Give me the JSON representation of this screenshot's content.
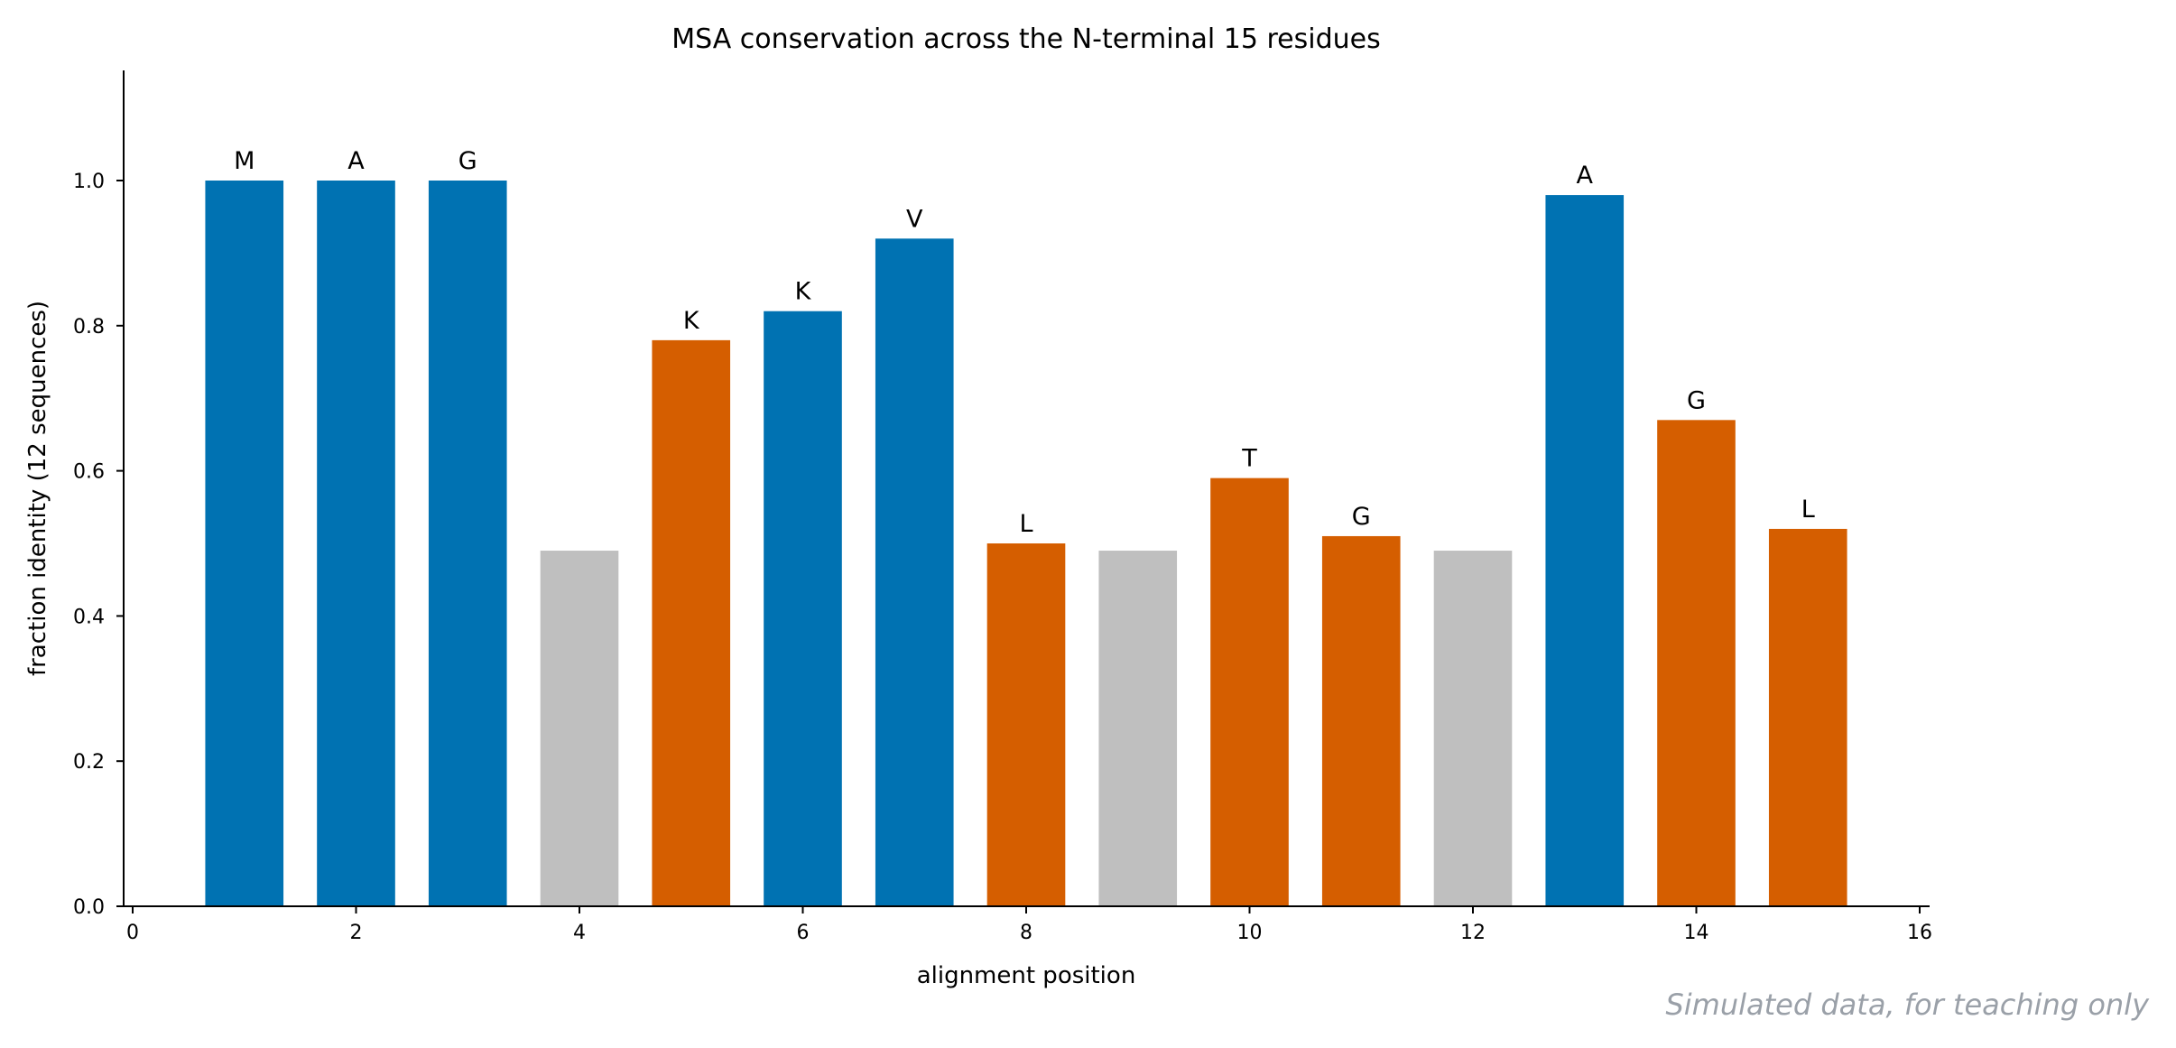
{
  "chart_data": {
    "type": "bar",
    "title": "MSA conservation across the N-terminal 15 residues",
    "xlabel": "alignment position",
    "ylabel": "fraction identity (12 sequences)",
    "xlim": [
      0,
      16
    ],
    "ylim": [
      0,
      1.15
    ],
    "xticks": [
      "0",
      "2",
      "4",
      "6",
      "8",
      "10",
      "12",
      "14",
      "16"
    ],
    "yticks": [
      "0.0",
      "0.2",
      "0.4",
      "0.6",
      "0.8",
      "1.0"
    ],
    "grid": false,
    "colors": {
      "blue": "#0072B2",
      "orange": "#D55E00",
      "gray": "#BFBFBF"
    },
    "bars": [
      {
        "x": 1,
        "value": 1.0,
        "label": "M",
        "color": "blue"
      },
      {
        "x": 2,
        "value": 1.0,
        "label": "A",
        "color": "blue"
      },
      {
        "x": 3,
        "value": 1.0,
        "label": "G",
        "color": "blue"
      },
      {
        "x": 4,
        "value": 0.49,
        "label": "",
        "color": "gray"
      },
      {
        "x": 5,
        "value": 0.78,
        "label": "K",
        "color": "orange"
      },
      {
        "x": 6,
        "value": 0.82,
        "label": "K",
        "color": "blue"
      },
      {
        "x": 7,
        "value": 0.92,
        "label": "V",
        "color": "blue"
      },
      {
        "x": 8,
        "value": 0.5,
        "label": "L",
        "color": "orange"
      },
      {
        "x": 9,
        "value": 0.49,
        "label": "",
        "color": "gray"
      },
      {
        "x": 10,
        "value": 0.59,
        "label": "T",
        "color": "orange"
      },
      {
        "x": 11,
        "value": 0.51,
        "label": "G",
        "color": "orange"
      },
      {
        "x": 12,
        "value": 0.49,
        "label": "",
        "color": "gray"
      },
      {
        "x": 13,
        "value": 0.98,
        "label": "A",
        "color": "blue"
      },
      {
        "x": 14,
        "value": 0.67,
        "label": "G",
        "color": "orange"
      },
      {
        "x": 15,
        "value": 0.52,
        "label": "L",
        "color": "orange"
      }
    ]
  },
  "watermark": "Simulated data, for teaching only"
}
